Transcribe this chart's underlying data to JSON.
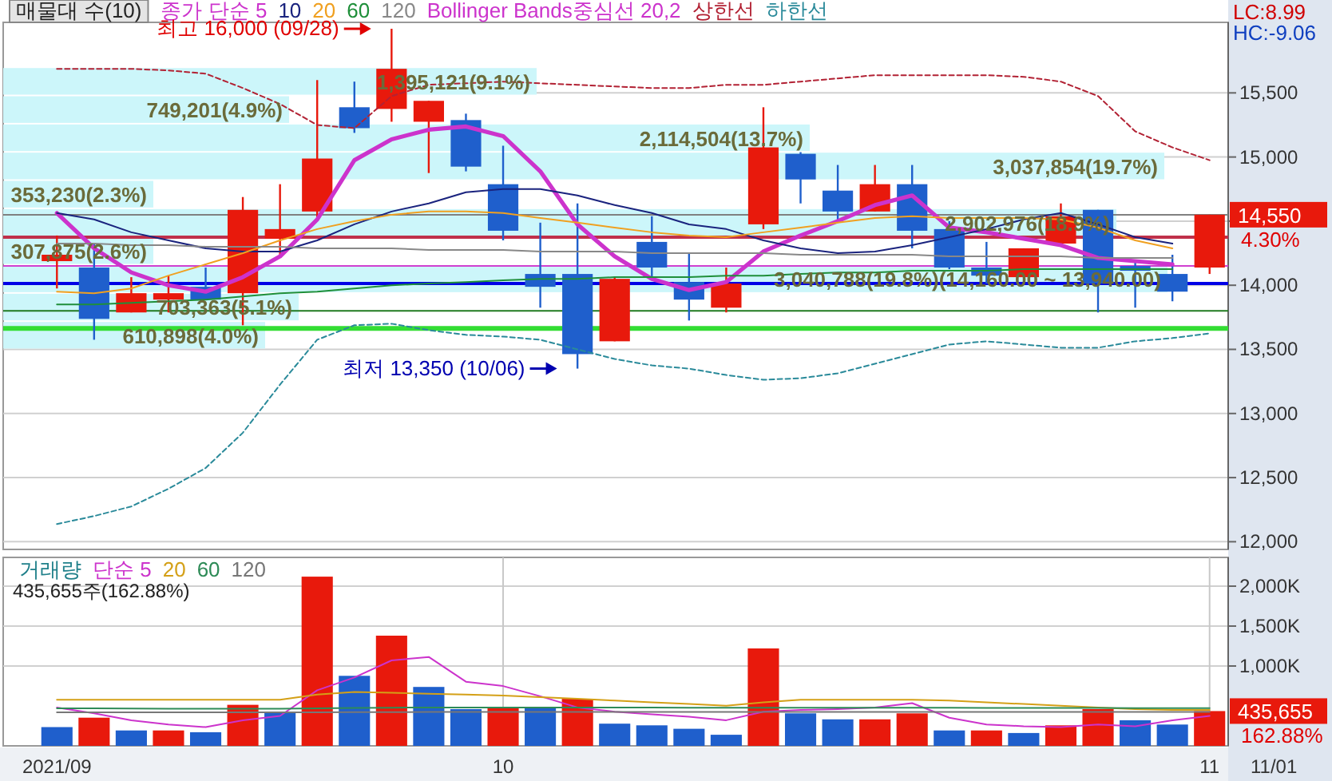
{
  "chart_data": [
    {
      "type": "candlestick",
      "title": "매물대 수(10)",
      "legend": "top left",
      "grid": true,
      "tick_labels": "y",
      "categories": [
        null,
        null,
        null,
        null,
        null,
        null,
        null,
        null,
        null,
        null,
        null,
        null,
        null,
        null,
        null,
        null,
        null,
        null,
        null,
        null,
        null,
        null,
        null,
        null,
        null,
        null,
        null,
        null,
        null,
        null,
        null,
        null
      ],
      "ohlc": [
        [
          14188,
          14388,
          13975,
          14238
        ],
        [
          14138,
          14325,
          13575,
          13738
        ],
        [
          13788,
          14063,
          13788,
          13938
        ],
        [
          13888,
          14075,
          13788,
          13938
        ],
        [
          13988,
          14138,
          13888,
          13888
        ],
        [
          13938,
          14688,
          13688,
          14588
        ],
        [
          14363,
          14788,
          14225,
          14438
        ],
        [
          14575,
          15600,
          14513,
          14988
        ],
        [
          15388,
          15588,
          15188,
          15225
        ],
        [
          15375,
          16000,
          15275,
          15688
        ],
        [
          15275,
          15438,
          14875,
          15438
        ],
        [
          15288,
          15338,
          14888,
          14925
        ],
        [
          14788,
          15088,
          14350,
          14425
        ],
        [
          14088,
          14488,
          13825,
          13988
        ],
        [
          14088,
          14638,
          13350,
          13463
        ],
        [
          13563,
          14063,
          13563,
          14050
        ],
        [
          14338,
          14538,
          14063,
          14138
        ],
        [
          14025,
          14250,
          13725,
          13888
        ],
        [
          13825,
          14138,
          13788,
          14013
        ],
        [
          14475,
          15388,
          14438,
          15075
        ],
        [
          15025,
          15038,
          14638,
          14825
        ],
        [
          14738,
          14938,
          14500,
          14575
        ],
        [
          14575,
          14938,
          14575,
          14788
        ],
        [
          14788,
          14938,
          14288,
          14425
        ],
        [
          14438,
          14500,
          14125,
          14138
        ],
        [
          14138,
          14338,
          14013,
          14075
        ],
        [
          14063,
          14288,
          14063,
          14288
        ],
        [
          14325,
          14638,
          14325,
          14538
        ],
        [
          14588,
          14588,
          13788,
          14013
        ],
        [
          14150,
          14188,
          13825,
          14113
        ],
        [
          14088,
          14238,
          13875,
          13950
        ],
        [
          14138,
          14550,
          14088,
          14550
        ]
      ],
      "colors": [
        "#e8190c",
        "#1f5fcc",
        "#e8190c",
        "#e8190c",
        "#1f5fcc",
        "#e8190c",
        "#e8190c",
        "#e8190c",
        "#1f5fcc",
        "#e8190c",
        "#e8190c",
        "#1f5fcc",
        "#1f5fcc",
        "#1f5fcc",
        "#1f5fcc",
        "#e8190c",
        "#1f5fcc",
        "#1f5fcc",
        "#e8190c",
        "#e8190c",
        "#1f5fcc",
        "#1f5fcc",
        "#e8190c",
        "#1f5fcc",
        "#1f5fcc",
        "#1f5fcc",
        "#e8190c",
        "#e8190c",
        "#1f5fcc",
        "#1f5fcc",
        "#1f5fcc",
        "#e8190c"
      ],
      "series": [
        {
          "name": "종가 단순 5",
          "type": "line",
          "color": "#cc33cc",
          "values": [
            14563,
            14288,
            14100,
            14000,
            13950,
            14063,
            14225,
            14513,
            14975,
            15138,
            15213,
            15238,
            15163,
            14888,
            14475,
            14225,
            14050,
            13963,
            14025,
            14263,
            14388,
            14500,
            14625,
            14700,
            14450,
            14413,
            14363,
            14313,
            14213,
            14188,
            14163,
            null
          ]
        },
        {
          "name": "10",
          "type": "line",
          "color": "#1a237e",
          "values": [
            14563,
            14513,
            14413,
            14350,
            14288,
            14263,
            14263,
            14350,
            14475,
            14575,
            14638,
            14725,
            14750,
            14750,
            14700,
            14625,
            14563,
            14475,
            14438,
            14350,
            14288,
            14250,
            14263,
            14313,
            14375,
            14438,
            14513,
            14563,
            14475,
            14375,
            14325,
            null
          ]
        },
        {
          "name": "20",
          "type": "line",
          "color": "#f0a020",
          "values": [
            13950,
            13938,
            13975,
            14075,
            14163,
            14250,
            14350,
            14438,
            14500,
            14550,
            14575,
            14575,
            14563,
            14525,
            14488,
            14450,
            14413,
            14388,
            14375,
            14413,
            14450,
            14488,
            14525,
            14538,
            14525,
            14525,
            14525,
            14513,
            14450,
            14350,
            14288,
            null
          ]
        },
        {
          "name": "60",
          "type": "line",
          "color": "#1f8f3a",
          "values": [
            13850,
            13850,
            13863,
            13875,
            13888,
            13913,
            13938,
            13950,
            13975,
            14000,
            14013,
            14025,
            14038,
            14050,
            14050,
            14063,
            14063,
            14063,
            14075,
            14075,
            14088,
            14100,
            14100,
            14113,
            14113,
            14113,
            14125,
            14125,
            14125,
            14125,
            14125,
            null
          ]
        },
        {
          "name": "120",
          "type": "line",
          "color": "#888888",
          "values": [
            14325,
            14325,
            14313,
            14313,
            14300,
            14300,
            14300,
            14288,
            14288,
            14288,
            14275,
            14275,
            14275,
            14263,
            14263,
            14263,
            14250,
            14250,
            14250,
            14250,
            14238,
            14238,
            14238,
            14238,
            14225,
            14225,
            14225,
            14225,
            14213,
            14213,
            14213,
            null
          ]
        },
        {
          "name": "상한선",
          "type": "line",
          "color": "#b22234",
          "line_style": "dashed",
          "values": [
            15688,
            15688,
            15688,
            15675,
            15650,
            15538,
            15413,
            15250,
            15225,
            15475,
            15563,
            15575,
            15588,
            15575,
            15563,
            15550,
            15538,
            15538,
            15563,
            15563,
            15588,
            15613,
            15638,
            15638,
            15638,
            15638,
            15625,
            15588,
            15475,
            15200,
            15075,
            14975
          ]
        },
        {
          "name": "하한선",
          "type": "line",
          "color": "#2a8a9a",
          "line_style": "dashed",
          "values": [
            12138,
            12200,
            12275,
            12413,
            12575,
            12850,
            13225,
            13575,
            13688,
            13700,
            13650,
            13613,
            13600,
            13575,
            13500,
            13425,
            13375,
            13350,
            13300,
            13263,
            13275,
            13313,
            13388,
            13463,
            13538,
            13563,
            13538,
            13513,
            13513,
            13563,
            13588,
            13625
          ]
        }
      ],
      "ylim": [
        11940,
        16050
      ],
      "yticks": [
        {
          "value": 12000,
          "label": "12,000"
        },
        {
          "value": 12500,
          "label": "12,500"
        },
        {
          "value": 13000,
          "label": "13,000"
        },
        {
          "value": 13500,
          "label": "13,500"
        },
        {
          "value": 14000,
          "label": "14,000"
        },
        {
          "value": 14500,
          "label": null
        },
        {
          "value": 15000,
          "label": "15,000"
        },
        {
          "value": 15500,
          "label": "15,500"
        }
      ],
      "bands": [
        {
          "axis": "y",
          "from": 13500,
          "to": 13720,
          "label": "610,898(4.0%)",
          "color": "#ccf6fa"
        },
        {
          "axis": "y",
          "from": 13720,
          "to": 13940,
          "label": "703,363(5.1%)",
          "color": "#ccf6fa"
        },
        {
          "axis": "y",
          "from": 13940,
          "to": 14160,
          "label": "3,040,788(19.8%)(14,160.00 ~ 13,940.00)",
          "color": "#ccf6fa"
        },
        {
          "axis": "y",
          "from": 14160,
          "to": 14380,
          "label": "307,875(2.6%)",
          "color": "#ccf6fa"
        },
        {
          "axis": "y",
          "from": 14380,
          "to": 14600,
          "label": "2,902,976(18.9%)",
          "color": "#ccf6fa"
        },
        {
          "axis": "y",
          "from": 14600,
          "to": 14820,
          "label": "353,230(2.3%)",
          "color": "#ccf6fa"
        },
        {
          "axis": "y",
          "from": 14820,
          "to": 15040,
          "label": "3,037,854(19.7%)",
          "color": "#ccf6fa"
        },
        {
          "axis": "y",
          "from": 15040,
          "to": 15260,
          "label": "2,114,504(13.7%)",
          "color": "#ccf6fa"
        },
        {
          "axis": "y",
          "from": 15260,
          "to": 15480,
          "label": "749,201(4.9%)",
          "color": "#ccf6fa"
        },
        {
          "axis": "y",
          "from": 15480,
          "to": 15700,
          "label": "1,395,121(9.1%)",
          "color": "#ccf6fa"
        }
      ],
      "ref_lines": [
        {
          "axis": "y",
          "value": 14550,
          "color": "#808080"
        },
        {
          "axis": "y",
          "value": 14375,
          "color": "#c0304a"
        },
        {
          "axis": "y",
          "value": 14150,
          "color": "#d040d0"
        },
        {
          "axis": "y",
          "value": 14013,
          "color": "#0000e6"
        },
        {
          "axis": "y",
          "value": 13800,
          "color": "#1f7a1f"
        },
        {
          "axis": "y",
          "value": 13663,
          "color": "#33dd33"
        }
      ],
      "annotations": [
        "최고 16,000 (09/28)",
        "최저 13,350 (10/06)",
        "Bollinger Bands중심선 20,2",
        "LC:8.99",
        "HC:-9.06",
        "14,550",
        "4.30%"
      ]
    },
    {
      "type": "bar",
      "legend": "top left",
      "legend_title": "거래량",
      "grid": true,
      "categories": [
        "2021/09",
        null,
        null,
        null,
        null,
        null,
        null,
        null,
        null,
        null,
        null,
        null,
        "10",
        null,
        null,
        null,
        null,
        null,
        null,
        null,
        null,
        null,
        null,
        null,
        null,
        null,
        null,
        null,
        null,
        null,
        null,
        "11"
      ],
      "series": [
        {
          "type": "bar",
          "colors": [
            "#1f5fcc",
            "#e8190c",
            "#1f5fcc",
            "#e8190c",
            "#1f5fcc",
            "#e8190c",
            "#1f5fcc",
            "#e8190c",
            "#1f5fcc",
            "#e8190c",
            "#1f5fcc",
            "#1f5fcc",
            "#e8190c",
            "#1f5fcc",
            "#e8190c",
            "#1f5fcc",
            "#1f5fcc",
            "#1f5fcc",
            "#1f5fcc",
            "#e8190c",
            "#1f5fcc",
            "#1f5fcc",
            "#e8190c",
            "#e8190c",
            "#1f5fcc",
            "#e8190c",
            "#1f5fcc",
            "#e8190c",
            "#e8190c",
            "#1f5fcc",
            "#1f5fcc",
            "#e8190c"
          ],
          "values": [
            235,
            353,
            193,
            193,
            171,
            514,
            428,
            2119,
            877,
            1380,
            738,
            460,
            471,
            471,
            589,
            278,
            257,
            214,
            139,
            1220,
            407,
            332,
            332,
            407,
            193,
            193,
            161,
            257,
            460,
            321,
            267,
            435.655
          ]
        },
        {
          "name": "단순 5",
          "type": "line",
          "color": "#cc33cc",
          "values": [
            481,
            407,
            321,
            268,
            235,
            321,
            375,
            696,
            856,
            1070,
            1113,
            803,
            749,
            621,
            481,
            428,
            396,
            364,
            321,
            428,
            449,
            460,
            481,
            535,
            353,
            268,
            246,
            235,
            268,
            246,
            321,
            375
          ]
        },
        {
          "name": "20",
          "type": "line",
          "color": "#d4a017",
          "values": [
            578,
            578,
            578,
            578,
            578,
            578,
            578,
            642,
            674,
            664,
            653,
            642,
            631,
            610,
            589,
            567,
            546,
            524,
            503,
            546,
            578,
            578,
            578,
            578,
            567,
            546,
            524,
            503,
            481,
            460,
            449,
            449
          ]
        },
        {
          "name": "60",
          "type": "line",
          "color": "#2e8b57",
          "values": [
            470,
            470,
            468,
            466,
            465,
            465,
            466,
            470,
            474,
            478,
            480,
            480,
            480,
            481,
            481,
            480,
            479,
            478,
            477,
            478,
            478,
            478,
            478,
            478,
            477,
            476,
            475,
            474,
            474,
            473,
            472,
            472
          ]
        },
        {
          "name": "120",
          "type": "line",
          "color": "#777777",
          "values": [
            420,
            420,
            420,
            420,
            420,
            420,
            420,
            421,
            422,
            423,
            424,
            424,
            424,
            424,
            424,
            424,
            424,
            424,
            424,
            425,
            425,
            425,
            425,
            425,
            425,
            425,
            425,
            425,
            425,
            425,
            425,
            425
          ]
        }
      ],
      "ylim": [
        0,
        2360
      ],
      "yticks": [
        {
          "value": 1000,
          "label": "1,000K"
        },
        {
          "value": 1500,
          "label": "1,500K"
        },
        {
          "value": 2000,
          "label": "2,000K"
        }
      ],
      "annotations": [
        "435,655주(162.88%)",
        "435,655",
        "162.88%",
        "11/01"
      ]
    }
  ]
}
